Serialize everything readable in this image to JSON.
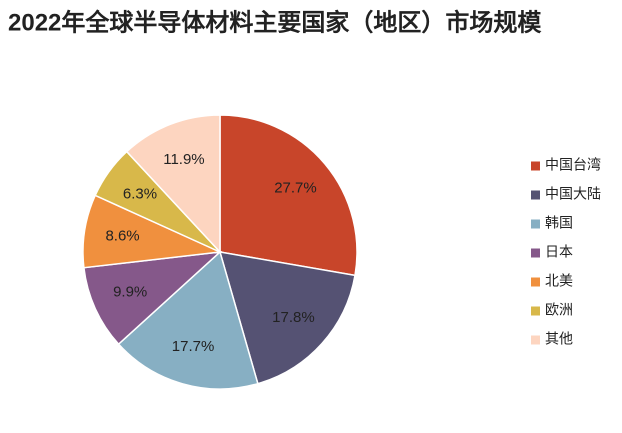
{
  "chart_data": {
    "type": "pie",
    "title": "2022年全球半导体材料主要国家（地区）市场规模",
    "categories": [
      "中国台湾",
      "中国大陆",
      "韩国",
      "日本",
      "北美",
      "欧洲",
      "其他"
    ],
    "values": [
      27.7,
      17.8,
      17.7,
      9.9,
      8.6,
      6.3,
      11.9
    ],
    "value_labels": [
      "27.7%",
      "17.8%",
      "17.7%",
      "9.9%",
      "8.6%",
      "6.3%",
      "11.9%"
    ],
    "colors": [
      "#c8452a",
      "#555273",
      "#87afc3",
      "#85588a",
      "#f0903e",
      "#d8b84a",
      "#fdd5c0"
    ],
    "legend": "right"
  }
}
